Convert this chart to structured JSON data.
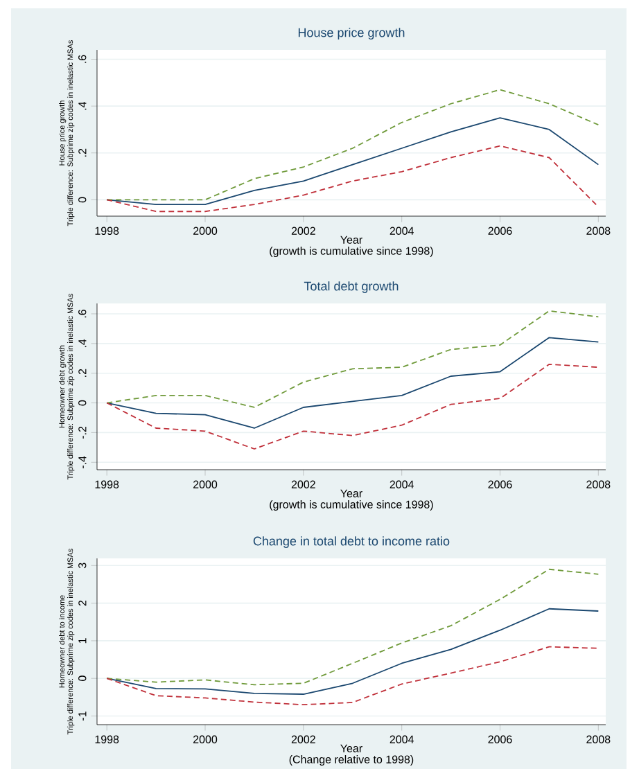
{
  "chart_data": [
    {
      "type": "line",
      "title": "House price growth",
      "xlabel": "Year",
      "ylabel": "House price growth",
      "annotations": [
        "Triple difference: Subprime zip codes in inelastic MSAs",
        "(growth is cumulative since 1998)"
      ],
      "x": [
        1998,
        1999,
        2000,
        2001,
        2002,
        2003,
        2004,
        2005,
        2006,
        2007,
        2008
      ],
      "xlim": [
        1997.8,
        2008.15
      ],
      "xticks": [
        1998,
        2000,
        2002,
        2004,
        2006,
        2008
      ],
      "ylim": [
        -0.07,
        0.64
      ],
      "yticks": [
        {
          "value": 0,
          "label": "0"
        },
        {
          "value": 0.2,
          "label": ".2"
        },
        {
          "value": 0.4,
          "label": ".4"
        },
        {
          "value": 0.6,
          "label": ".6"
        }
      ],
      "grid": "y",
      "marker": "none",
      "series": [
        {
          "color": "#1a476f",
          "line_style": "solid",
          "values": [
            0,
            -0.02,
            -0.02,
            0.04,
            0.08,
            0.15,
            0.22,
            0.29,
            0.35,
            0.3,
            0.15
          ]
        },
        {
          "color": "#6f9a3a",
          "line_style": "dashed",
          "values": [
            0,
            0,
            0,
            0.09,
            0.14,
            0.22,
            0.33,
            0.41,
            0.47,
            0.41,
            0.32
          ]
        },
        {
          "color": "#c0303a",
          "line_style": "dashed",
          "values": [
            0,
            -0.05,
            -0.05,
            -0.02,
            0.02,
            0.08,
            0.12,
            0.18,
            0.23,
            0.18,
            -0.03
          ]
        }
      ]
    },
    {
      "type": "line",
      "title": "Total debt growth",
      "xlabel": "Year",
      "ylabel": "Homeowner debt growth",
      "annotations": [
        "Triple difference: Subprime zip codes in inelastic MSAs",
        "(growth is cumulative since 1998)"
      ],
      "x": [
        1998,
        1999,
        2000,
        2001,
        2002,
        2003,
        2004,
        2005,
        2006,
        2007,
        2008
      ],
      "xlim": [
        1997.8,
        2008.15
      ],
      "xticks": [
        1998,
        2000,
        2002,
        2004,
        2006,
        2008
      ],
      "ylim": [
        -0.45,
        0.67
      ],
      "yticks": [
        {
          "value": -0.4,
          "label": "-.4"
        },
        {
          "value": -0.2,
          "label": "-.2"
        },
        {
          "value": 0,
          "label": "0"
        },
        {
          "value": 0.2,
          "label": ".2"
        },
        {
          "value": 0.4,
          "label": ".4"
        },
        {
          "value": 0.6,
          "label": ".6"
        }
      ],
      "grid": "y",
      "marker": "none",
      "series": [
        {
          "color": "#1a476f",
          "line_style": "solid",
          "values": [
            0,
            -0.07,
            -0.08,
            -0.17,
            -0.03,
            0.01,
            0.05,
            0.18,
            0.21,
            0.44,
            0.41
          ]
        },
        {
          "color": "#6f9a3a",
          "line_style": "dashed",
          "values": [
            0,
            0.05,
            0.05,
            -0.03,
            0.14,
            0.23,
            0.24,
            0.36,
            0.39,
            0.62,
            0.58
          ]
        },
        {
          "color": "#c0303a",
          "line_style": "dashed",
          "values": [
            0,
            -0.17,
            -0.19,
            -0.31,
            -0.19,
            -0.22,
            -0.15,
            -0.01,
            0.03,
            0.26,
            0.24
          ]
        }
      ]
    },
    {
      "type": "line",
      "title": "Change in total debt to income ratio",
      "xlabel": "Year",
      "ylabel": "Homeowner debt to income",
      "annotations": [
        "Triple difference: Subprime zip codes in inelastic MSAs",
        "(Change relative to 1998)"
      ],
      "x": [
        1998,
        1999,
        2000,
        2001,
        2002,
        2003,
        2004,
        2005,
        2006,
        2007,
        2008
      ],
      "xlim": [
        1997.8,
        2008.15
      ],
      "xticks": [
        1998,
        2000,
        2002,
        2004,
        2006,
        2008
      ],
      "ylim": [
        -1.23,
        3.19
      ],
      "yticks": [
        -1,
        0,
        1,
        2,
        3
      ],
      "grid": "y",
      "marker": "none",
      "series": [
        {
          "color": "#1a476f",
          "line_style": "solid",
          "values": [
            0,
            -0.27,
            -0.28,
            -0.4,
            -0.42,
            -0.13,
            0.4,
            0.77,
            1.28,
            1.85,
            1.79
          ]
        },
        {
          "color": "#6f9a3a",
          "line_style": "dashed",
          "values": [
            0,
            -0.1,
            -0.04,
            -0.17,
            -0.13,
            0.4,
            0.94,
            1.4,
            2.1,
            2.9,
            2.77
          ]
        },
        {
          "color": "#c0303a",
          "line_style": "dashed",
          "values": [
            0,
            -0.46,
            -0.52,
            -0.63,
            -0.7,
            -0.64,
            -0.15,
            0.14,
            0.44,
            0.84,
            0.8
          ]
        }
      ]
    }
  ]
}
